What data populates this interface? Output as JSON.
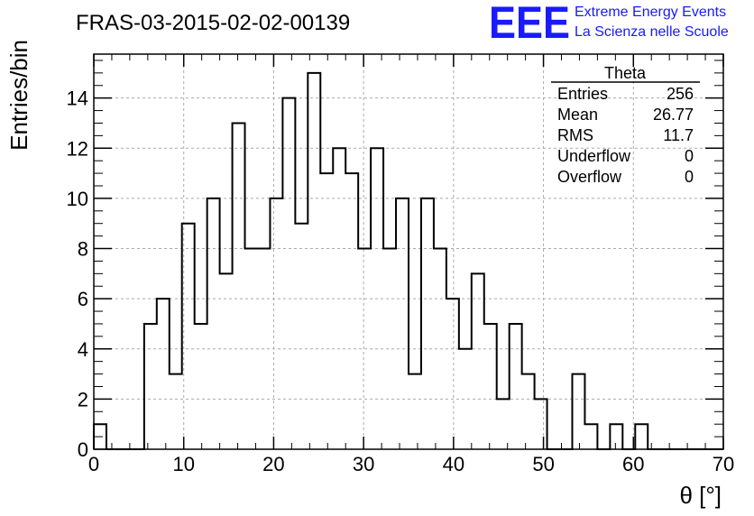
{
  "chart_data": {
    "type": "bar",
    "title": "FRAS-03-2015-02-02-00139",
    "xlabel": "θ [°]",
    "ylabel": "Entries/bin",
    "xlim": [
      0,
      70
    ],
    "ylim": [
      0,
      15.75
    ],
    "bin_width": 1.4,
    "x_ticks": [
      0,
      10,
      20,
      30,
      40,
      50,
      60,
      70
    ],
    "y_ticks": [
      0,
      2,
      4,
      6,
      8,
      10,
      12,
      14
    ],
    "grid": true,
    "values": [
      1,
      0,
      0,
      0,
      5,
      6,
      3,
      9,
      5,
      10,
      7,
      13,
      8,
      8,
      10,
      14,
      9,
      15,
      11,
      12,
      11,
      8,
      12,
      8,
      10,
      3,
      10,
      8,
      6,
      4,
      7,
      5,
      2,
      5,
      3,
      2,
      0,
      0,
      3,
      1,
      0,
      1,
      0,
      1,
      0,
      0,
      0,
      0,
      0,
      0
    ],
    "stats": {
      "name": "Theta",
      "rows": [
        {
          "label": "Entries",
          "value": "256"
        },
        {
          "label": "Mean",
          "value": "26.77"
        },
        {
          "label": "RMS",
          "value": "11.7"
        },
        {
          "label": "Underflow",
          "value": "0"
        },
        {
          "label": "Overflow",
          "value": "0"
        }
      ],
      "placement": "top-right"
    }
  },
  "logo": {
    "mark": "EEE",
    "line1": "Extreme Energy Events",
    "line2": "La Scienza nelle Scuole",
    "color": "#1a1aff"
  }
}
